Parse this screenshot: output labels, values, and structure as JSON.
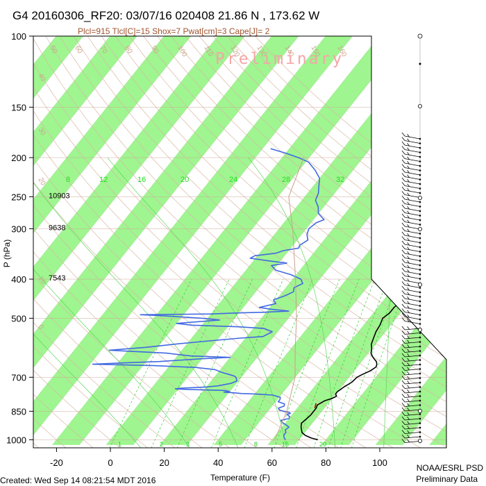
{
  "header": {
    "title": "G4 20160306_RF20: 03/07/16 020408  21.86 N , 173.62 W",
    "subtitle": "Plcl=915 Tlcl[C]=15 Shox=7 Pwat[cm]=3 Cape[J]= 2",
    "watermark": "Preliminary"
  },
  "footer": {
    "created": "Created: Wed Sep 14 08:21:54 MDT 2016",
    "org": "NOAA/ESRL PSD",
    "status": "Preliminary Data"
  },
  "chart_data": {
    "type": "line",
    "diagram": "skew-T log-p",
    "xlabel": "Temperature (F)",
    "ylabel": "P (hPa)",
    "xlim": [
      -29,
      105
    ],
    "ylim": [
      1025,
      100
    ],
    "y_scale": "log",
    "x_ticks": [
      -20,
      0,
      20,
      40,
      60,
      80,
      100
    ],
    "y_ticks": [
      100,
      150,
      200,
      250,
      300,
      400,
      500,
      700,
      850,
      1000
    ],
    "height_labels": [
      {
        "p": 250,
        "label": "10903"
      },
      {
        "p": 300,
        "label": "9638"
      },
      {
        "p": 400,
        "label": "7543"
      }
    ],
    "isotherm_bands": "alternating green bands every 10 F",
    "mixing_ratio_labels_top": [
      "8",
      "12",
      "16",
      "20",
      "24",
      "28",
      "32"
    ],
    "mixing_ratio_labels_bottom": [
      "1",
      "2",
      "3",
      "5",
      "8",
      "15",
      "20"
    ],
    "dry_adiabat_labels": [
      "50",
      "60",
      "70",
      "80",
      "90",
      "100",
      "110",
      "120",
      "130",
      "140",
      "150",
      "160",
      "40",
      "30",
      "20",
      "10",
      "0"
    ],
    "moist_adiabat_labels": [
      "30",
      "20",
      "10",
      "0",
      "10",
      "30"
    ],
    "series": [
      {
        "name": "Temperature",
        "color": "#000000",
        "points": [
          [
            1000,
            77
          ],
          [
            990,
            74
          ],
          [
            975,
            71
          ],
          [
            960,
            69
          ],
          [
            945,
            68
          ],
          [
            930,
            67
          ],
          [
            910,
            66
          ],
          [
            890,
            66.5
          ],
          [
            870,
            67
          ],
          [
            850,
            67
          ],
          [
            835,
            67
          ],
          [
            820,
            66.5
          ],
          [
            800,
            68
          ],
          [
            790,
            70
          ],
          [
            780,
            71
          ],
          [
            770,
            70
          ],
          [
            760,
            70
          ],
          [
            750,
            70.5
          ],
          [
            740,
            71
          ],
          [
            720,
            72.5
          ],
          [
            700,
            73
          ],
          [
            690,
            74
          ],
          [
            675,
            76
          ],
          [
            660,
            77
          ],
          [
            650,
            76.5
          ],
          [
            640,
            75.5
          ],
          [
            625,
            73
          ],
          [
            610,
            71
          ],
          [
            595,
            70
          ],
          [
            580,
            68.5
          ],
          [
            560,
            67.5
          ],
          [
            540,
            66.5
          ],
          [
            520,
            66
          ],
          [
            500,
            65
          ],
          [
            485,
            66
          ],
          [
            470,
            66
          ],
          [
            460,
            66.5
          ],
          [
            450,
            67
          ],
          [
            440,
            65.5
          ],
          [
            425,
            65
          ],
          [
            410,
            62.5
          ],
          [
            395,
            61
          ],
          [
            380,
            59
          ],
          [
            365,
            58
          ],
          [
            355,
            58.5
          ],
          [
            345,
            57.5
          ],
          [
            330,
            56
          ],
          [
            320,
            54.5
          ],
          [
            300,
            52
          ],
          [
            290,
            51
          ],
          [
            280,
            49
          ],
          [
            270,
            48.5
          ],
          [
            260,
            47
          ],
          [
            250,
            46
          ],
          [
            240,
            45
          ],
          [
            230,
            44
          ],
          [
            220,
            42.5
          ],
          [
            210,
            41
          ],
          [
            200,
            39.5
          ],
          [
            190,
            38.5
          ],
          [
            180,
            37
          ],
          [
            170,
            35.5
          ]
        ]
      },
      {
        "name": "Dew point",
        "color": "#4169e1",
        "points": [
          [
            1000,
            65
          ],
          [
            990,
            64
          ],
          [
            975,
            63
          ],
          [
            960,
            63
          ],
          [
            945,
            62
          ],
          [
            930,
            62.5
          ],
          [
            920,
            61
          ],
          [
            905,
            58.5
          ],
          [
            895,
            57.5
          ],
          [
            885,
            60
          ],
          [
            875,
            59.5
          ],
          [
            865,
            58
          ],
          [
            860,
            59
          ],
          [
            855,
            58
          ],
          [
            845,
            54
          ],
          [
            835,
            53
          ],
          [
            825,
            54.5
          ],
          [
            815,
            54
          ],
          [
            805,
            51
          ],
          [
            795,
            51
          ],
          [
            785,
            50.5
          ],
          [
            775,
            47
          ],
          [
            770,
            40
          ],
          [
            768,
            35
          ],
          [
            765,
            32
          ],
          [
            762,
            28
          ],
          [
            760,
            30
          ],
          [
            755,
            28
          ],
          [
            750,
            13
          ],
          [
            748,
            9
          ],
          [
            745,
            11
          ],
          [
            740,
            20
          ],
          [
            735,
            24
          ],
          [
            725,
            28
          ],
          [
            715,
            29.5
          ],
          [
            705,
            28.5
          ],
          [
            700,
            28
          ],
          [
            695,
            27
          ],
          [
            690,
            25
          ],
          [
            680,
            21
          ],
          [
            670,
            18
          ],
          [
            662,
            10
          ],
          [
            655,
            -6
          ],
          [
            650,
            -29
          ],
          [
            645,
            -18
          ],
          [
            640,
            -5
          ],
          [
            630,
            10
          ],
          [
            625,
            20
          ],
          [
            620,
            5
          ],
          [
            610,
            -5
          ],
          [
            600,
            -27
          ],
          [
            590,
            -14
          ],
          [
            580,
            -5
          ],
          [
            570,
            6
          ],
          [
            560,
            18
          ],
          [
            555,
            26
          ],
          [
            540,
            28
          ],
          [
            530,
            24
          ],
          [
            525,
            14
          ],
          [
            520,
            -4
          ],
          [
            515,
            -10
          ],
          [
            505,
            5
          ],
          [
            500,
            -2
          ],
          [
            495,
            -13
          ],
          [
            492,
            -20
          ],
          [
            490,
            -26
          ],
          [
            488,
            0
          ],
          [
            485,
            10
          ],
          [
            483,
            20
          ],
          [
            480,
            28
          ],
          [
            475,
            21
          ],
          [
            470,
            16
          ],
          [
            460,
            21
          ],
          [
            450,
            19
          ],
          [
            440,
            22
          ],
          [
            430,
            24
          ],
          [
            420,
            23
          ],
          [
            410,
            25
          ],
          [
            400,
            23
          ],
          [
            390,
            18
          ],
          [
            380,
            11
          ],
          [
            370,
            8
          ],
          [
            365,
            13
          ],
          [
            360,
            5
          ],
          [
            355,
            -2
          ],
          [
            350,
            -1
          ],
          [
            345,
            6
          ],
          [
            340,
            8
          ],
          [
            335,
            13
          ],
          [
            330,
            12.5
          ],
          [
            320,
            14
          ],
          [
            310,
            12
          ],
          [
            300,
            11
          ],
          [
            290,
            12
          ],
          [
            285,
            14
          ],
          [
            280,
            12
          ],
          [
            275,
            10
          ],
          [
            265,
            8
          ],
          [
            255,
            5
          ],
          [
            245,
            4
          ],
          [
            235,
            2
          ],
          [
            225,
            0
          ],
          [
            215,
            -4
          ],
          [
            205,
            -9
          ],
          [
            200,
            -14
          ],
          [
            195,
            -20
          ],
          [
            190,
            -27
          ]
        ]
      },
      {
        "name": "Parcel",
        "color": "#c8a08a",
        "points": [
          [
            1000,
            61
          ],
          [
            850,
            57
          ],
          [
            700,
            50
          ],
          [
            600,
            42
          ],
          [
            500,
            33
          ],
          [
            400,
            21
          ],
          [
            300,
            5
          ],
          [
            250,
            -6
          ],
          [
            200,
            -12
          ]
        ]
      }
    ],
    "wind_barbs": "station-model wind barbs plotted along right edge from 100 to 1000 hPa",
    "grid": true
  }
}
